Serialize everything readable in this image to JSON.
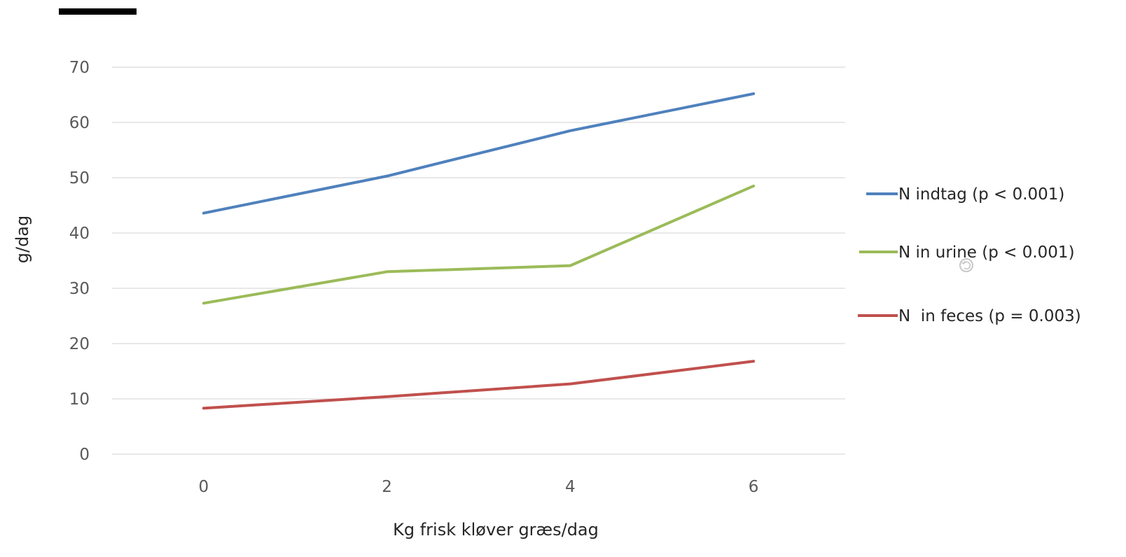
{
  "chart_data": {
    "type": "line",
    "x": [
      0,
      2,
      4,
      6
    ],
    "xticks": [
      "0",
      "2",
      "4",
      "6"
    ],
    "yticks": [
      "0",
      "10",
      "20",
      "30",
      "40",
      "50",
      "60",
      "70"
    ],
    "ylim": [
      0,
      70
    ],
    "xlim": [
      -1,
      7
    ],
    "xlabel": "Kg frisk kløver græs/dag",
    "ylabel": "g/dag",
    "grid": true,
    "legend_position": "right",
    "series": [
      {
        "name": "N indtag (p < 0.001)",
        "color": "#4F81BD",
        "values": [
          43.6,
          50.3,
          58.5,
          65.2
        ]
      },
      {
        "name": "N in urine (p < 0.001)",
        "color": "#9BBB59",
        "values": [
          27.3,
          33.0,
          34.1,
          48.5
        ]
      },
      {
        "name": "N  in feces (p = 0.003)",
        "color": "#C0504D",
        "values": [
          8.3,
          10.4,
          12.7,
          16.8
        ]
      }
    ]
  },
  "decor": {
    "header_bar_color": "#000000",
    "cursor_icon": "refresh-cursor-icon"
  }
}
